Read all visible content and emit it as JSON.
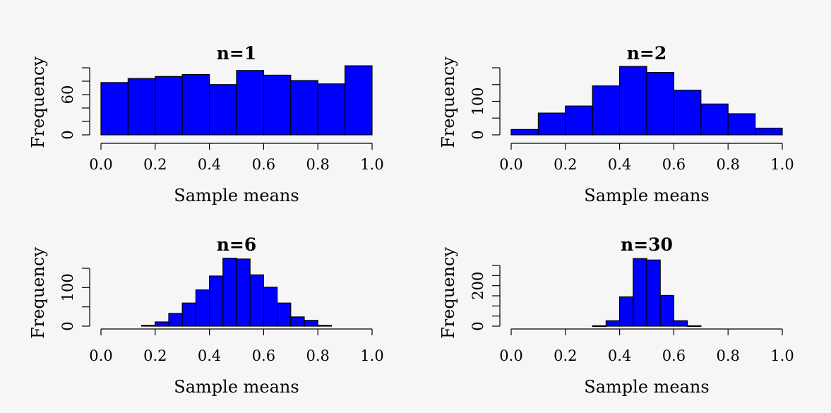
{
  "chart_data": [
    {
      "type": "bar",
      "title": "n=1",
      "xlabel": "Sample means",
      "ylabel": "Frequency",
      "xlim": [
        0,
        1
      ],
      "ylim": [
        0,
        100
      ],
      "xticks": [
        "0.0",
        "0.2",
        "0.4",
        "0.6",
        "0.8",
        "1.0"
      ],
      "yticks": [
        "0",
        "60"
      ],
      "bins": [
        [
          0.0,
          0.1
        ],
        [
          0.1,
          0.2
        ],
        [
          0.2,
          0.3
        ],
        [
          0.3,
          0.4
        ],
        [
          0.4,
          0.5
        ],
        [
          0.5,
          0.6
        ],
        [
          0.6,
          0.7
        ],
        [
          0.7,
          0.8
        ],
        [
          0.8,
          0.9
        ],
        [
          0.9,
          1.0
        ]
      ],
      "values": [
        78,
        84,
        87,
        90,
        75,
        96,
        89,
        81,
        76,
        103
      ],
      "bar_color": "#0000ff"
    },
    {
      "type": "bar",
      "title": "n=2",
      "xlabel": "Sample means",
      "ylabel": "Frequency",
      "xlim": [
        0,
        1
      ],
      "ylim": [
        0,
        200
      ],
      "xticks": [
        "0.0",
        "0.2",
        "0.4",
        "0.6",
        "0.8",
        "1.0"
      ],
      "yticks": [
        "0",
        "100"
      ],
      "bins": [
        [
          0.0,
          0.1
        ],
        [
          0.1,
          0.2
        ],
        [
          0.2,
          0.3
        ],
        [
          0.3,
          0.4
        ],
        [
          0.4,
          0.5
        ],
        [
          0.5,
          0.6
        ],
        [
          0.6,
          0.7
        ],
        [
          0.7,
          0.8
        ],
        [
          0.8,
          0.9
        ],
        [
          0.9,
          1.0
        ]
      ],
      "values": [
        16,
        65,
        86,
        146,
        204,
        186,
        133,
        92,
        63,
        20
      ],
      "bar_color": "#0000ff"
    },
    {
      "type": "bar",
      "title": "n=6",
      "xlabel": "Sample means",
      "ylabel": "Frequency",
      "xlim": [
        0,
        1
      ],
      "ylim": [
        0,
        150
      ],
      "xticks": [
        "0.0",
        "0.2",
        "0.4",
        "0.6",
        "0.8",
        "1.0"
      ],
      "yticks": [
        "0",
        "100"
      ],
      "bins": [
        [
          0.15,
          0.2
        ],
        [
          0.2,
          0.25
        ],
        [
          0.25,
          0.3
        ],
        [
          0.3,
          0.35
        ],
        [
          0.35,
          0.4
        ],
        [
          0.4,
          0.45
        ],
        [
          0.45,
          0.5
        ],
        [
          0.5,
          0.55
        ],
        [
          0.55,
          0.6
        ],
        [
          0.6,
          0.65
        ],
        [
          0.65,
          0.7
        ],
        [
          0.7,
          0.75
        ],
        [
          0.75,
          0.8
        ],
        [
          0.8,
          0.85
        ]
      ],
      "values": [
        2,
        11,
        33,
        60,
        94,
        130,
        176,
        174,
        133,
        101,
        60,
        24,
        15,
        2
      ],
      "bar_color": "#0000ff"
    },
    {
      "type": "bar",
      "title": "n=30",
      "xlabel": "Sample means",
      "ylabel": "Frequency",
      "xlim": [
        0,
        1
      ],
      "ylim": [
        0,
        300
      ],
      "xticks": [
        "0.0",
        "0.2",
        "0.4",
        "0.6",
        "0.8",
        "1.0"
      ],
      "yticks": [
        "0",
        "200"
      ],
      "bins": [
        [
          0.3,
          0.35
        ],
        [
          0.35,
          0.4
        ],
        [
          0.4,
          0.45
        ],
        [
          0.45,
          0.5
        ],
        [
          0.5,
          0.55
        ],
        [
          0.55,
          0.6
        ],
        [
          0.6,
          0.65
        ],
        [
          0.65,
          0.7
        ]
      ],
      "values": [
        2,
        27,
        145,
        334,
        327,
        152,
        27,
        2
      ],
      "bar_color": "#0000ff"
    }
  ]
}
